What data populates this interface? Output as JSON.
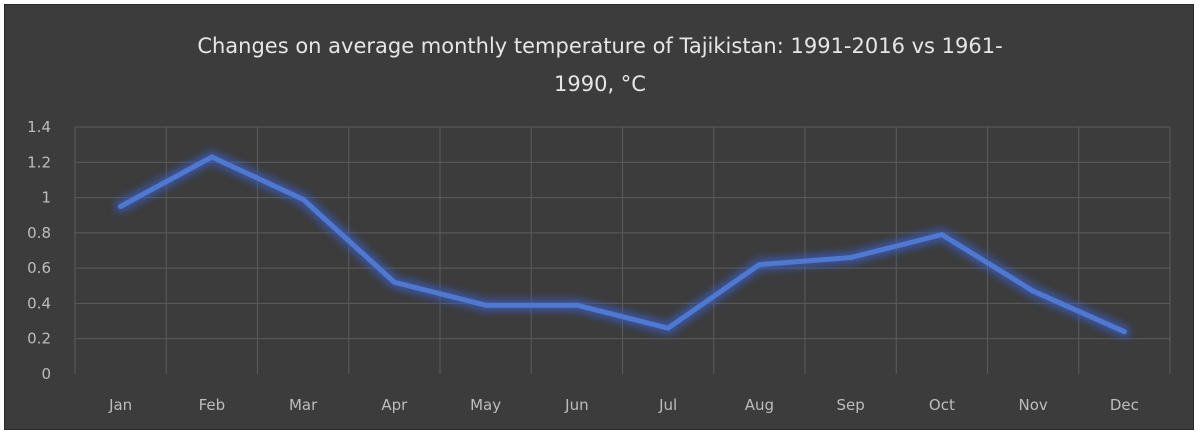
{
  "chart_data": {
    "type": "line",
    "title_line1": "Changes on average monthly temperature of Tajikistan: 1991-2016 vs 1961-",
    "title_line2": "1990, °C",
    "categories": [
      "Jan",
      "Feb",
      "Mar",
      "Apr",
      "May",
      "Jun",
      "Jul",
      "Aug",
      "Sep",
      "Oct",
      "Nov",
      "Dec"
    ],
    "series": [
      {
        "values": [
          0.95,
          1.23,
          0.99,
          0.52,
          0.39,
          0.39,
          0.26,
          0.62,
          0.66,
          0.79,
          0.47,
          0.24
        ]
      }
    ],
    "ylim": [
      0,
      1.4
    ],
    "yticks": [
      "0",
      "0.2",
      "0.4",
      "0.6",
      "0.8",
      "1",
      "1.2",
      "1.4"
    ],
    "ytick_values": [
      0,
      0.2,
      0.4,
      0.6,
      0.8,
      1.0,
      1.2,
      1.4
    ],
    "grid": true,
    "colors": {
      "background": "#3c3c3c",
      "line": "#4f78d0",
      "glow": "#3b5fc4",
      "grid": "#5c5c5c",
      "text": "#bdbdbd",
      "title": "#e6e6e6"
    }
  }
}
